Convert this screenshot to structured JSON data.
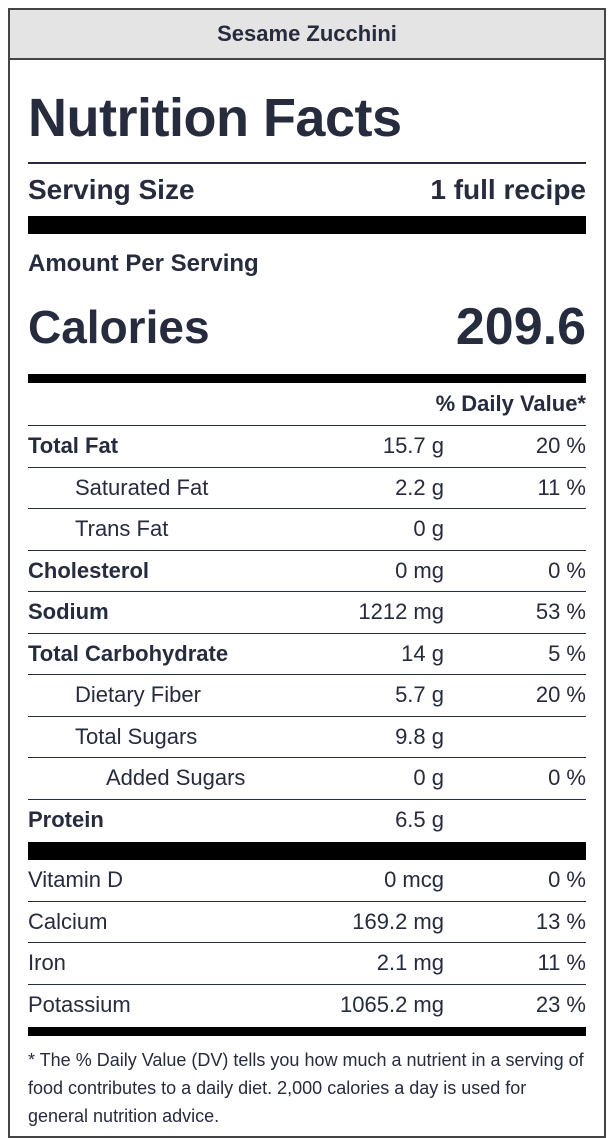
{
  "recipe_name": "Sesame Zucchini",
  "title": "Nutrition Facts",
  "serving": {
    "label": "Serving Size",
    "value": "1 full recipe"
  },
  "amount_per_serving": "Amount Per Serving",
  "calories": {
    "label": "Calories",
    "value": "209.6"
  },
  "dv_header": "% Daily Value*",
  "nutrients": [
    {
      "name": "Total Fat",
      "amount": "15.7 g",
      "dv": "20 %"
    },
    {
      "name": "Saturated Fat",
      "amount": "2.2 g",
      "dv": "11 %"
    },
    {
      "name": "Trans Fat",
      "amount": "0 g",
      "dv": ""
    },
    {
      "name": "Cholesterol",
      "amount": "0 mg",
      "dv": "0 %"
    },
    {
      "name": "Sodium",
      "amount": "1212 mg",
      "dv": "53 %"
    },
    {
      "name": "Total Carbohydrate",
      "amount": "14 g",
      "dv": "5 %"
    },
    {
      "name": "Dietary Fiber",
      "amount": "5.7 g",
      "dv": "20 %"
    },
    {
      "name": "Total Sugars",
      "amount": "9.8 g",
      "dv": ""
    },
    {
      "name": "Added Sugars",
      "amount": "0 g",
      "dv": "0 %"
    },
    {
      "name": "Protein",
      "amount": "6.5 g",
      "dv": ""
    }
  ],
  "vitamins": [
    {
      "name": "Vitamin D",
      "amount": "0 mcg",
      "dv": "0 %"
    },
    {
      "name": "Calcium",
      "amount": "169.2 mg",
      "dv": "13 %"
    },
    {
      "name": "Iron",
      "amount": "2.1 mg",
      "dv": "11 %"
    },
    {
      "name": "Potassium",
      "amount": "1065.2 mg",
      "dv": "23 %"
    }
  ],
  "footnote": "* The % Daily Value (DV) tells you how much a nutrient in a serving of food contributes to a daily diet. 2,000 calories a day is used for general nutrition advice."
}
